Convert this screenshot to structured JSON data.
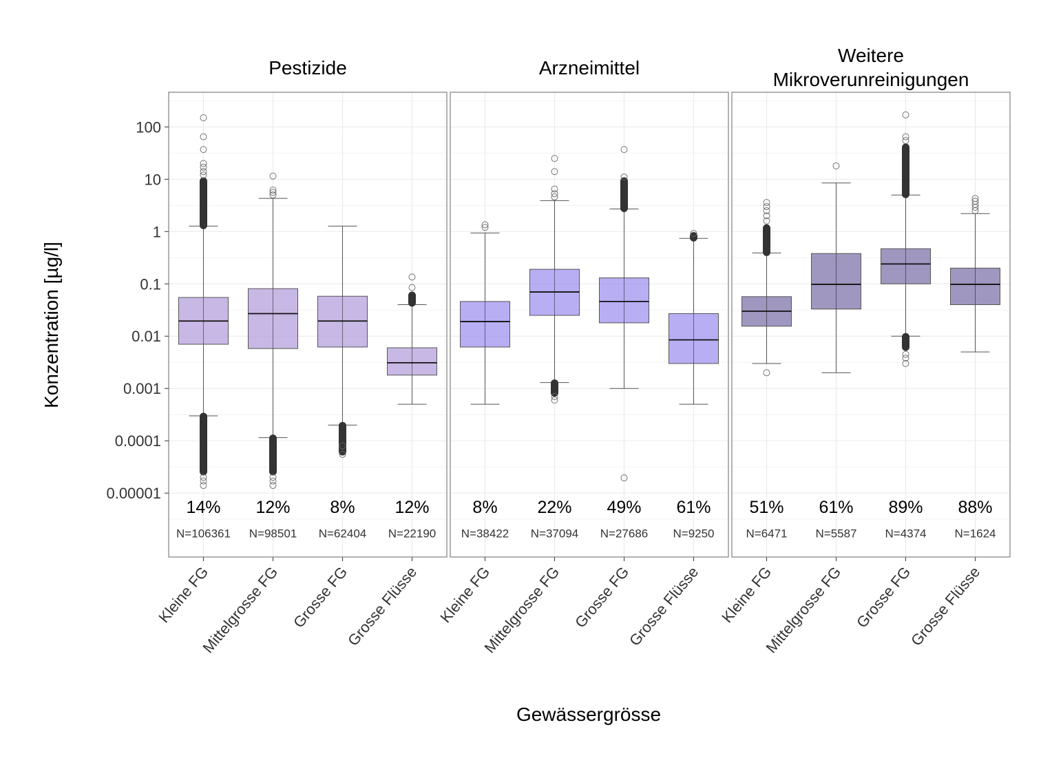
{
  "chart_data": {
    "type": "boxplot",
    "title": "",
    "xlabel": "Gewässergrösse",
    "ylabel": "Konzentration [µg/l]",
    "yscale": "log10",
    "ylim": [
      6e-07,
      460
    ],
    "yticks": [
      100,
      10,
      1,
      0.1,
      0.01,
      0.001,
      0.0001,
      1e-05
    ],
    "ytick_labels": [
      "100",
      "10",
      "1",
      "0.1",
      "0.01",
      "0.001",
      "0.0001",
      "0.00001"
    ],
    "grid": true,
    "categories": [
      "Kleine FG",
      "Mittelgrosse FG",
      "Grosse FG",
      "Grosse Flüsse"
    ],
    "annotation_pct_value": 5.5e-06,
    "annotation_n_value": 1.7e-06,
    "panels": [
      {
        "title": [
          "Pestizide"
        ],
        "fill": "#b39ddb",
        "boxes": [
          {
            "category": "Kleine FG",
            "q1": 0.007,
            "median": 0.0195,
            "q3": 0.055,
            "whisker_low": 0.0003,
            "whisker_high": 1.27,
            "outliers_high_range": [
              1.27,
              9.5
            ],
            "outliers_high_sparse": [
              12,
              14,
              17,
              20,
              37,
              65,
              150
            ],
            "outliers_low_range": [
              2.5e-05,
              0.0003
            ],
            "outliers_low_sparse": [
              1.4e-05,
              1.7e-05,
              2e-05
            ],
            "pct": "14%",
            "n": "N=106361"
          },
          {
            "category": "Mittelgrosse FG",
            "q1": 0.0058,
            "median": 0.027,
            "q3": 0.081,
            "whisker_low": 0.000115,
            "whisker_high": 4.3,
            "outliers_high_range": [],
            "outliers_high_sparse": [
              5,
              5.6,
              6.2,
              11.5
            ],
            "outliers_low_range": [
              2.5e-05,
              0.000115
            ],
            "outliers_low_sparse": [
              1.4e-05,
              1.7e-05,
              2e-05
            ],
            "pct": "12%",
            "n": "N=98501"
          },
          {
            "category": "Grosse FG",
            "q1": 0.0062,
            "median": 0.0195,
            "q3": 0.058,
            "whisker_low": 0.0002,
            "whisker_high": 1.27,
            "outliers_high_range": [],
            "outliers_high_sparse": [],
            "outliers_low_range": [
              6e-05,
              0.0002
            ],
            "outliers_low_sparse": [
              5.5e-05,
              8e-05
            ],
            "pct": "8%",
            "n": "N=62404"
          },
          {
            "category": "Grosse Flüsse",
            "q1": 0.0018,
            "median": 0.0031,
            "q3": 0.006,
            "whisker_low": 0.0005,
            "whisker_high": 0.04,
            "outliers_high_range": [
              0.042,
              0.062
            ],
            "outliers_high_sparse": [
              0.085,
              0.135
            ],
            "outliers_low_range": [],
            "outliers_low_sparse": [],
            "pct": "12%",
            "n": "N=22190"
          }
        ]
      },
      {
        "title": [
          "Arzneimittel"
        ],
        "fill": "#9d8ff0",
        "boxes": [
          {
            "category": "Kleine FG",
            "q1": 0.0062,
            "median": 0.019,
            "q3": 0.046,
            "whisker_low": 0.0005,
            "whisker_high": 0.94,
            "outliers_high_range": [],
            "outliers_high_sparse": [
              1.2,
              1.35
            ],
            "outliers_low_range": [],
            "outliers_low_sparse": [],
            "pct": "8%",
            "n": "N=38422"
          },
          {
            "category": "Mittelgrosse FG",
            "q1": 0.025,
            "median": 0.07,
            "q3": 0.19,
            "whisker_low": 0.0013,
            "whisker_high": 3.9,
            "outliers_high_range": [],
            "outliers_high_sparse": [
              4.6,
              5.3,
              6.5,
              14,
              25
            ],
            "outliers_low_range": [
              0.0008,
              0.0013
            ],
            "outliers_low_sparse": [
              0.0006,
              0.0007
            ],
            "pct": "22%",
            "n": "N=37094"
          },
          {
            "category": "Grosse FG",
            "q1": 0.018,
            "median": 0.046,
            "q3": 0.13,
            "whisker_low": 0.001,
            "whisker_high": 2.7,
            "outliers_high_range": [
              2.7,
              9.5
            ],
            "outliers_high_sparse": [
              11,
              37
            ],
            "outliers_low_range": [],
            "outliers_low_sparse": [
              1.95e-05
            ],
            "pct": "49%",
            "n": "N=27686"
          },
          {
            "category": "Grosse Flüsse",
            "q1": 0.003,
            "median": 0.0085,
            "q3": 0.027,
            "whisker_low": 0.0005,
            "whisker_high": 0.74,
            "outliers_high_range": [
              0.74,
              0.85
            ],
            "outliers_high_sparse": [
              0.92
            ],
            "outliers_low_range": [],
            "outliers_low_sparse": [],
            "pct": "61%",
            "n": "N=9250"
          }
        ]
      },
      {
        "title": [
          "Weitere",
          "Mikroverunreinigungen"
        ],
        "fill": "#7b6fa8",
        "boxes": [
          {
            "category": "Kleine FG",
            "q1": 0.0155,
            "median": 0.03,
            "q3": 0.057,
            "whisker_low": 0.003,
            "whisker_high": 0.39,
            "outliers_high_range": [
              0.39,
              1.2
            ],
            "outliers_high_sparse": [
              1.6,
              2.0,
              2.5,
              3.0,
              3.6
            ],
            "outliers_low_range": [],
            "outliers_low_sparse": [
              0.002
            ],
            "pct": "51%",
            "n": "N=6471"
          },
          {
            "category": "Mittelgrosse FG",
            "q1": 0.033,
            "median": 0.098,
            "q3": 0.38,
            "whisker_low": 0.002,
            "whisker_high": 8.5,
            "outliers_high_range": [],
            "outliers_high_sparse": [
              18
            ],
            "outliers_low_range": [],
            "outliers_low_sparse": [],
            "pct": "61%",
            "n": "N=5587"
          },
          {
            "category": "Grosse FG",
            "q1": 0.1,
            "median": 0.24,
            "q3": 0.47,
            "whisker_low": 0.01,
            "whisker_high": 5,
            "outliers_high_range": [
              5,
              42
            ],
            "outliers_high_sparse": [
              55,
              65,
              170
            ],
            "outliers_low_range": [
              0.006,
              0.01
            ],
            "outliers_low_sparse": [
              0.0045,
              0.0038,
              0.003
            ],
            "pct": "89%",
            "n": "N=4374"
          },
          {
            "category": "Grosse Flüsse",
            "q1": 0.04,
            "median": 0.098,
            "q3": 0.2,
            "whisker_low": 0.005,
            "whisker_high": 2.2,
            "outliers_high_range": [],
            "outliers_high_sparse": [
              2.5,
              2.9,
              3.3,
              3.8,
              4.3
            ],
            "outliers_low_range": [],
            "outliers_low_sparse": [],
            "pct": "88%",
            "n": "N=1624"
          }
        ]
      }
    ]
  }
}
